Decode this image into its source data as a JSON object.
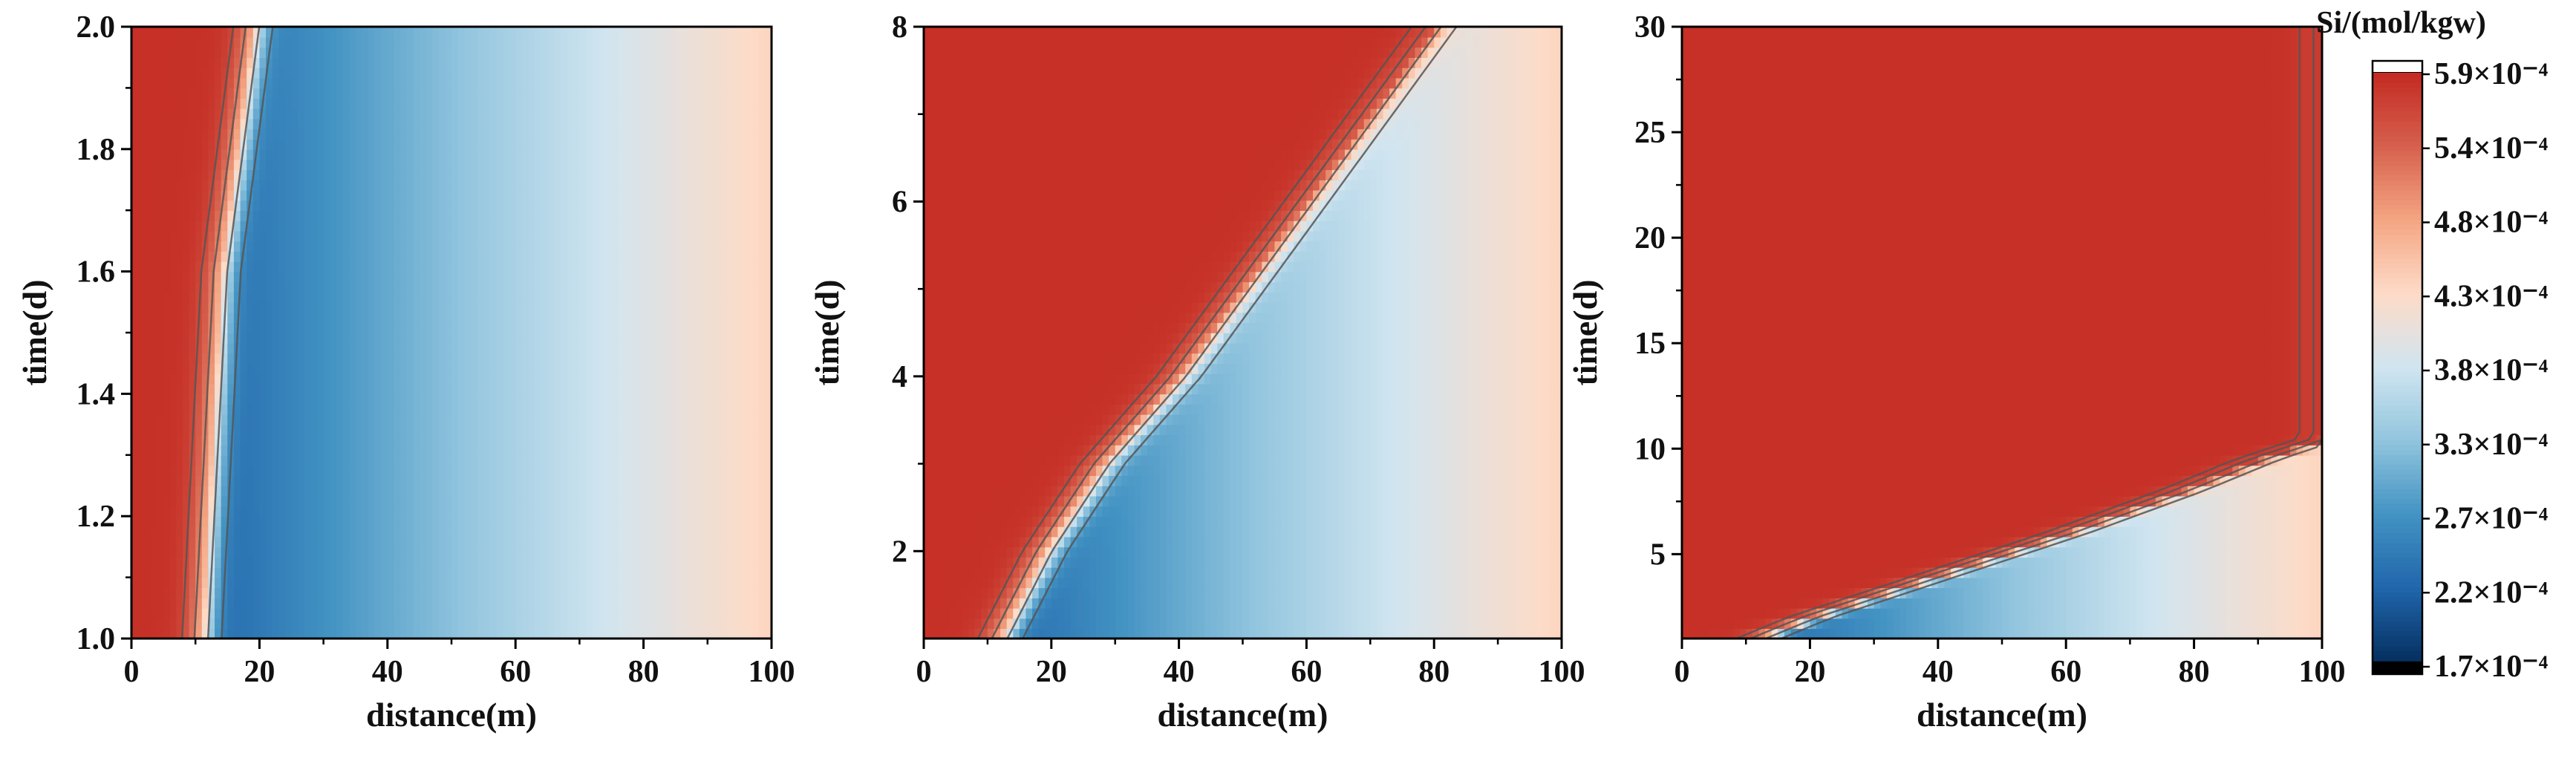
{
  "chart_data": [
    {
      "type": "heatmap",
      "xlabel": "distance(m)",
      "ylabel": "time(d)",
      "xlim": [
        0,
        100
      ],
      "ylim": [
        1.0,
        2.0
      ],
      "x_ticks": [
        0,
        20,
        40,
        60,
        80,
        100
      ],
      "y_ticks": [
        1.0,
        1.2,
        1.4,
        1.6,
        1.8,
        2.0
      ],
      "y_tick_labels": [
        "1.0",
        "1.2",
        "1.4",
        "1.6",
        "1.8",
        "2.0"
      ],
      "front": {
        "t": [
          1.0,
          1.3,
          1.6,
          1.8,
          2.0
        ],
        "x": [
          11.0,
          12.5,
          14.0,
          16.5,
          19.0
        ]
      },
      "front_width_m": 3.5
    },
    {
      "type": "heatmap",
      "xlabel": "distance(m)",
      "ylabel": "time(d)",
      "xlim": [
        0,
        100
      ],
      "ylim": [
        1,
        8
      ],
      "x_ticks": [
        0,
        20,
        40,
        60,
        80,
        100
      ],
      "y_ticks": [
        2,
        4,
        6,
        8
      ],
      "y_tick_labels": [
        "2",
        "4",
        "6",
        "8"
      ],
      "front": {
        "t": [
          1.0,
          2.0,
          3.0,
          4.0,
          5.0,
          6.0,
          7.0,
          8.0
        ],
        "x": [
          12.0,
          19.0,
          28.0,
          40.0,
          50.0,
          60.0,
          70.0,
          80.0
        ]
      },
      "front_width_m": 4.0
    },
    {
      "type": "heatmap",
      "xlabel": "distance(m)",
      "ylabel": "time(d)",
      "xlim": [
        0,
        100
      ],
      "ylim": [
        1,
        30
      ],
      "x_ticks": [
        0,
        20,
        40,
        60,
        80,
        100
      ],
      "y_ticks": [
        5,
        10,
        15,
        20,
        25,
        30
      ],
      "y_tick_labels": [
        "5",
        "10",
        "15",
        "20",
        "25",
        "30"
      ],
      "front": {
        "t": [
          1.0,
          2.0,
          3.0,
          4.5,
          6.0,
          8.0,
          9.5,
          10.5
        ],
        "x": [
          12.0,
          20.0,
          30.0,
          45.0,
          60.0,
          78.0,
          90.0,
          100.0
        ]
      },
      "front_width_m": 4.0
    }
  ],
  "colorbar": {
    "title": "Si/(mol/kgw)",
    "tick_labels": [
      "5.9×10⁻⁴",
      "5.4×10⁻⁴",
      "4.8×10⁻⁴",
      "4.3×10⁻⁴",
      "3.8×10⁻⁴",
      "3.3×10⁻⁴",
      "2.7×10⁻⁴",
      "2.2×10⁻⁴",
      "1.7×10⁻⁴"
    ],
    "colors": [
      "#053061",
      "#2166ac",
      "#4393c3",
      "#92c5de",
      "#d1e5f0",
      "#fddbc7",
      "#f4a582",
      "#d6604d",
      "#c42a22"
    ],
    "over_color": "#ffffff",
    "under_color": "#000000"
  }
}
